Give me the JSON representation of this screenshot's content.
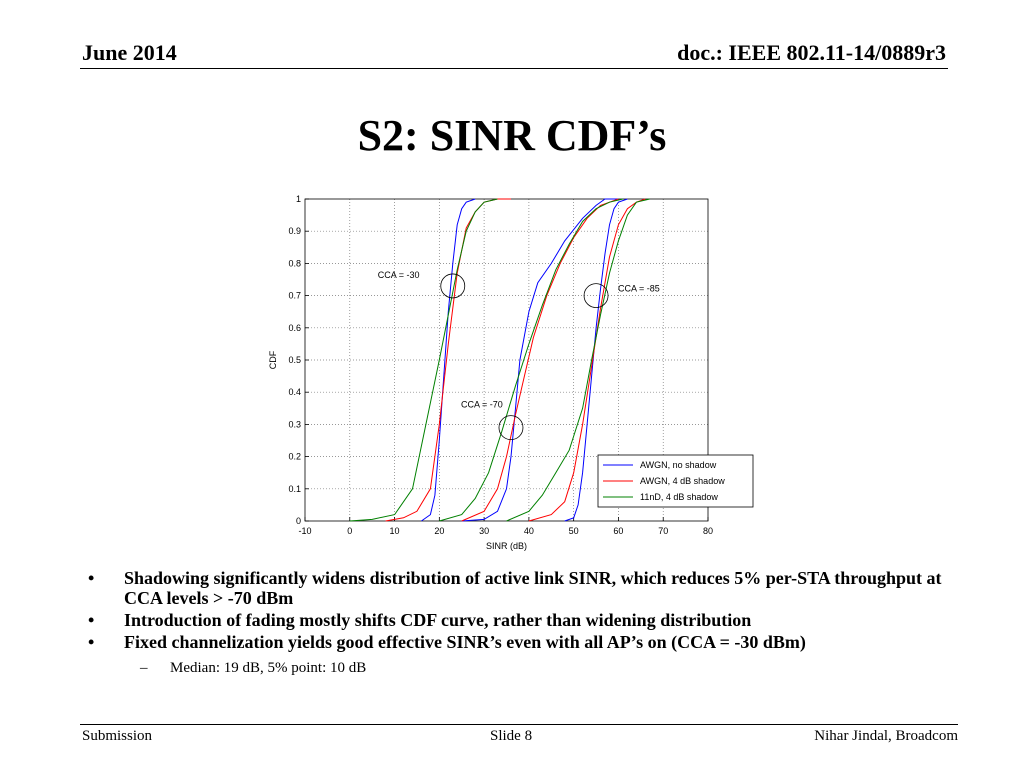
{
  "header": {
    "date": "June 2014",
    "doc": "doc.: IEEE 802.11-14/0889r3"
  },
  "slide": {
    "title": "S2: SINR CDF’s"
  },
  "chart_data": {
    "type": "line",
    "title": "",
    "xlabel": "SINR (dB)",
    "ylabel": "CDF",
    "xlim": [
      -10,
      80
    ],
    "ylim": [
      0,
      1
    ],
    "xticks": [
      -10,
      0,
      10,
      20,
      30,
      40,
      50,
      60,
      70,
      80
    ],
    "yticks": [
      0,
      0.1,
      0.2,
      0.3,
      0.4,
      0.5,
      0.6,
      0.7,
      0.8,
      0.9,
      1
    ],
    "grid": true,
    "legend_position": "bottom-right",
    "colors": {
      "AWGN, no shadow": "#0000ff",
      "AWGN, 4 dB shadow": "#ff0000",
      "11nD, 4 dB shadow": "#008000"
    },
    "series": [
      {
        "name": "AWGN, no shadow",
        "group": "CCA = -30",
        "x": [
          16,
          18,
          19,
          20,
          21,
          22,
          23,
          24,
          25,
          26,
          28
        ],
        "y": [
          0,
          0.02,
          0.08,
          0.25,
          0.45,
          0.65,
          0.8,
          0.92,
          0.97,
          0.99,
          1
        ]
      },
      {
        "name": "AWGN, 4 dB shadow",
        "group": "CCA = -30",
        "x": [
          8,
          12,
          15,
          18,
          20,
          22,
          24,
          26,
          28,
          30,
          33,
          36
        ],
        "y": [
          0,
          0.01,
          0.03,
          0.1,
          0.3,
          0.55,
          0.77,
          0.91,
          0.96,
          0.99,
          1,
          1
        ]
      },
      {
        "name": "11nD, 4 dB shadow",
        "group": "CCA = -30",
        "x": [
          0,
          5,
          10,
          14,
          17,
          20,
          22,
          24,
          26,
          28,
          30,
          33
        ],
        "y": [
          0,
          0.005,
          0.02,
          0.1,
          0.3,
          0.5,
          0.64,
          0.78,
          0.9,
          0.96,
          0.99,
          1
        ]
      },
      {
        "name": "AWGN, no shadow",
        "group": "CCA = -70",
        "x": [
          25,
          30,
          33,
          35,
          36,
          37,
          38,
          40,
          42,
          45,
          48,
          52,
          55,
          57,
          60
        ],
        "y": [
          0,
          0.005,
          0.03,
          0.1,
          0.2,
          0.35,
          0.5,
          0.65,
          0.74,
          0.8,
          0.87,
          0.94,
          0.98,
          1,
          1
        ]
      },
      {
        "name": "AWGN, 4 dB shadow",
        "group": "CCA = -70",
        "x": [
          25,
          30,
          33,
          35,
          37,
          39,
          41,
          44,
          47,
          50,
          53,
          56,
          58,
          60
        ],
        "y": [
          0,
          0.03,
          0.1,
          0.2,
          0.33,
          0.45,
          0.57,
          0.7,
          0.8,
          0.88,
          0.94,
          0.98,
          0.99,
          1
        ]
      },
      {
        "name": "11nD, 4 dB shadow",
        "group": "CCA = -70",
        "x": [
          20,
          25,
          28,
          31,
          34,
          37,
          40,
          43,
          46,
          49,
          52,
          55,
          58,
          61
        ],
        "y": [
          0,
          0.02,
          0.07,
          0.15,
          0.28,
          0.42,
          0.55,
          0.67,
          0.78,
          0.86,
          0.93,
          0.97,
          0.99,
          1
        ]
      },
      {
        "name": "AWGN, no shadow",
        "group": "CCA = -85",
        "x": [
          48,
          50,
          51,
          52,
          53,
          54,
          55,
          56,
          57,
          58,
          59,
          60,
          62
        ],
        "y": [
          0,
          0.01,
          0.05,
          0.15,
          0.3,
          0.45,
          0.6,
          0.72,
          0.83,
          0.92,
          0.97,
          0.99,
          1
        ]
      },
      {
        "name": "AWGN, 4 dB shadow",
        "group": "CCA = -85",
        "x": [
          40,
          45,
          48,
          50,
          52,
          54,
          56,
          58,
          60,
          62,
          64,
          66
        ],
        "y": [
          0,
          0.02,
          0.06,
          0.15,
          0.3,
          0.48,
          0.66,
          0.82,
          0.92,
          0.97,
          0.99,
          1
        ]
      },
      {
        "name": "11nD, 4 dB shadow",
        "group": "CCA = -85",
        "x": [
          35,
          40,
          43,
          46,
          49,
          52,
          54,
          56,
          58,
          60,
          62,
          64,
          67
        ],
        "y": [
          0,
          0.03,
          0.08,
          0.15,
          0.22,
          0.35,
          0.5,
          0.64,
          0.77,
          0.87,
          0.95,
          0.99,
          1
        ]
      }
    ],
    "annotations": [
      {
        "text": "CCA = -30",
        "x": 23,
        "y": 0.73
      },
      {
        "text": "CCA = -70",
        "x": 36,
        "y": 0.29
      },
      {
        "text": "CCA = -85",
        "x": 55,
        "y": 0.7
      }
    ]
  },
  "bullets": [
    "Shadowing significantly widens distribution of active link SINR, which reduces 5% per-STA throughput at CCA levels > -70 dBm",
    "Introduction of fading mostly shifts CDF curve, rather than widening distribution",
    "Fixed channelization yields good effective SINR’s even with all AP’s on (CCA = -30 dBm)"
  ],
  "sub_bullets": [
    "Median: 19 dB, 5% point: 10 dB"
  ],
  "footer": {
    "left": "Submission",
    "center": "Slide 8",
    "right": "Nihar Jindal, Broadcom"
  }
}
